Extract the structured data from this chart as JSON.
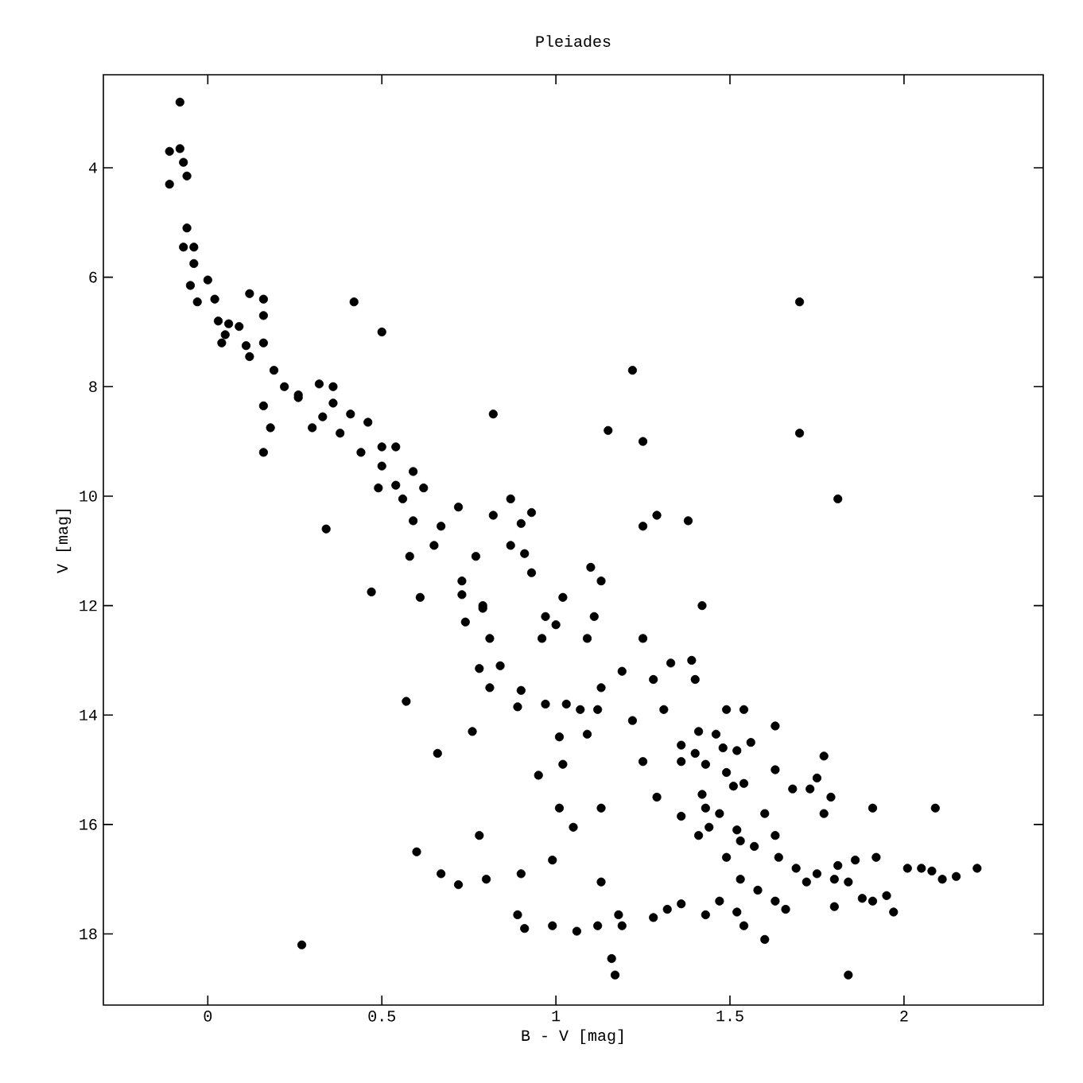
{
  "chart_data": {
    "type": "scatter",
    "title": "Pleiades",
    "xlabel": "B - V [mag]",
    "ylabel": "V [mag]",
    "xlim": [
      -0.3,
      2.4
    ],
    "ylim": [
      19.3,
      2.3
    ],
    "xticks": [
      0,
      0.5,
      1,
      1.5,
      2
    ],
    "yticks": [
      4,
      6,
      8,
      10,
      12,
      14,
      16,
      18
    ],
    "marker": "circle",
    "series": [
      {
        "color": "#000000",
        "x": [
          -0.08,
          -0.11,
          -0.08,
          -0.07,
          -0.11,
          -0.06,
          -0.06,
          -0.07,
          -0.04,
          -0.04,
          -0.05,
          0,
          -0.03,
          0.02,
          0.12,
          0.16,
          0.16,
          0.03,
          0.06,
          0.09,
          0.05,
          0.04,
          0.11,
          0.16,
          0.12,
          0.19,
          0.22,
          0.16,
          0.18,
          0.16,
          0.26,
          0.32,
          0.36,
          0.36,
          0.33,
          0.38,
          0.44,
          0.46,
          0.41,
          0.5,
          0.54,
          0.59,
          0.65,
          0.73,
          0.79,
          0.72,
          0.82,
          0.87,
          0.93,
          0.9,
          0.77,
          0.87,
          0.91,
          0.73,
          0.74,
          0.79,
          0.81,
          0.78,
          0.84,
          0.81,
          0.89,
          0.9,
          0.97,
          1.03,
          0.96,
          1.02,
          0.93,
          0.97,
          1.0,
          1.09,
          1.11,
          1.25,
          1.29,
          1.38,
          1.42,
          1.81,
          1.1,
          1.13,
          1.25,
          1.19,
          1.13,
          1.07,
          1.12,
          1.33,
          1.39,
          1.4,
          1.28,
          1.31,
          1.22,
          1.09,
          1.01,
          1.02,
          0.95,
          1.01,
          1.05,
          1.13,
          0.99,
          0.78,
          0.8,
          0.72,
          1.13,
          0.89,
          0.91,
          0.99,
          1.06,
          1.12,
          1.18,
          1.19,
          1.16,
          1.17,
          1.28,
          1.32,
          1.36,
          1.43,
          1.47,
          1.52,
          1.54,
          1.6,
          1.66,
          1.8,
          1.84,
          1.97,
          1.91,
          1.95,
          1.88,
          2.01,
          2.05,
          2.08,
          2.11,
          2.15,
          2.21,
          2.09,
          1.91,
          1.86,
          1.92,
          1.77,
          1.75,
          1.73,
          1.79,
          1.77,
          1.68,
          1.63,
          1.63,
          1.54,
          1.49,
          1.46,
          1.41,
          1.36,
          1.36,
          1.43,
          1.42,
          1.43,
          1.36,
          1.41,
          1.29,
          1.44,
          1.47,
          1.49,
          1.54,
          1.52,
          1.56,
          1.49,
          1.52,
          1.53,
          1.58,
          1.6,
          1.63,
          1.64,
          1.69,
          1.72,
          1.75,
          1.8,
          1.84,
          1.81,
          1.63,
          1.57,
          1.4,
          1.25,
          0.42,
          0.5,
          0.82,
          0.3,
          0.34,
          0.59,
          0.62,
          0.5,
          0.54,
          0.49,
          0.56,
          0.67,
          0.26,
          0.47,
          0.61,
          0.58,
          0.57,
          0.6,
          0.67,
          0.27,
          0.66,
          0.76,
          0.9,
          1.15,
          1.22,
          1.25,
          1.7,
          1.7,
          1.48,
          1.51,
          1.53
        ],
        "values": [
          2.8,
          3.7,
          3.65,
          3.9,
          4.3,
          4.15,
          5.1,
          5.45,
          5.45,
          5.75,
          6.15,
          6.05,
          6.45,
          6.4,
          6.3,
          6.4,
          6.7,
          6.8,
          6.85,
          6.9,
          7.05,
          7.2,
          7.25,
          7.2,
          7.45,
          7.7,
          8,
          8.35,
          8.75,
          9.2,
          8.15,
          7.95,
          8.0,
          8.3,
          8.55,
          8.85,
          9.2,
          8.65,
          8.5,
          9.45,
          9.8,
          10.45,
          10.9,
          11.55,
          12,
          10.2,
          10.35,
          10.05,
          10.3,
          10.5,
          11.1,
          10.9,
          11.05,
          11.8,
          12.3,
          12.05,
          12.6,
          13.15,
          13.1,
          13.5,
          13.85,
          13.55,
          13.8,
          13.8,
          12.6,
          11.85,
          11.4,
          12.2,
          12.35,
          12.6,
          12.2,
          10.55,
          10.35,
          10.45,
          12.0,
          10.05,
          11.3,
          11.55,
          12.6,
          13.2,
          13.5,
          13.9,
          13.9,
          13.05,
          13.0,
          13.35,
          13.35,
          13.9,
          14.1,
          14.35,
          14.4,
          14.9,
          15.1,
          15.7,
          16.05,
          15.7,
          16.65,
          16.2,
          17.0,
          17.1,
          17.05,
          17.65,
          17.9,
          17.85,
          17.95,
          17.85,
          17.65,
          17.85,
          18.45,
          18.75,
          17.7,
          17.55,
          17.45,
          17.65,
          17.4,
          17.6,
          17.85,
          18.1,
          17.55,
          17.5,
          18.75,
          17.6,
          17.4,
          17.3,
          17.35,
          16.8,
          16.8,
          16.85,
          17.0,
          16.95,
          16.8,
          15.7,
          15.7,
          16.65,
          16.6,
          14.75,
          15.15,
          15.35,
          15.5,
          15.8,
          15.35,
          15.0,
          14.2,
          13.9,
          13.9,
          14.35,
          14.3,
          14.85,
          14.55,
          14.9,
          15.45,
          15.7,
          15.85,
          16.2,
          15.5,
          16.05,
          15.8,
          15.05,
          15.25,
          14.65,
          14.5,
          16.6,
          16.1,
          17.0,
          17.2,
          15.8,
          16.2,
          16.6,
          16.8,
          17.05,
          16.9,
          17.0,
          17.05,
          16.75,
          17.4,
          16.4,
          14.7,
          14.85,
          6.45,
          7.0,
          8.5,
          8.75,
          10.6,
          9.55,
          9.85,
          9.1,
          9.1,
          9.85,
          10.05,
          10.55,
          8.2,
          11.75,
          11.85,
          11.1,
          13.75,
          16.5,
          16.9,
          18.2,
          14.7,
          14.3,
          16.9,
          8.8,
          7.7,
          9.0,
          6.45,
          8.85,
          14.6,
          15.3,
          16.3
        ]
      }
    ]
  }
}
